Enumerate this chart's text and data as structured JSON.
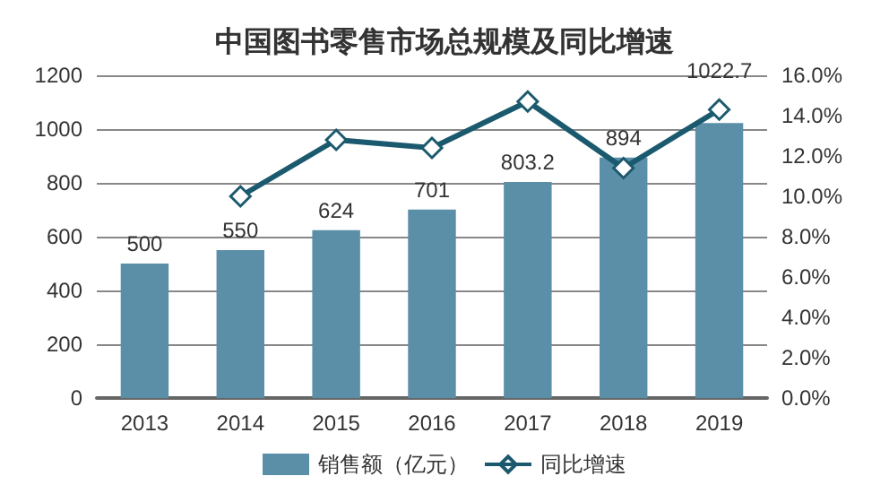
{
  "chart_data": {
    "type": "bar",
    "title": "中国图书零售市场总规模及同比增速",
    "categories": [
      "2013",
      "2014",
      "2015",
      "2016",
      "2017",
      "2018",
      "2019"
    ],
    "series": [
      {
        "name": "销售额（亿元）",
        "color": "#5b8fa8",
        "values": [
          500,
          550,
          624,
          701,
          803.2,
          894,
          1022.7
        ],
        "value_labels": [
          "500",
          "550",
          "624",
          "701",
          "803.2",
          "894",
          "1022.7"
        ]
      },
      {
        "name": "同比增速",
        "type": "line",
        "axis": "y2",
        "color": "#1b5a6e",
        "marker": "diamond",
        "values": [
          null,
          10.0,
          12.8,
          12.4,
          14.7,
          11.4,
          14.3
        ]
      }
    ],
    "ylim": [
      0,
      1200
    ],
    "yticks": [
      0,
      200,
      400,
      600,
      800,
      1000,
      1200
    ],
    "y2lim": [
      0,
      16
    ],
    "y2ticks": [
      {
        "value": 0,
        "label": "0.0%"
      },
      {
        "value": 2,
        "label": "2.0%"
      },
      {
        "value": 4,
        "label": "4.0%"
      },
      {
        "value": 6,
        "label": "6.0%"
      },
      {
        "value": 8,
        "label": "8.0%"
      },
      {
        "value": 10,
        "label": "10.0%"
      },
      {
        "value": 12,
        "label": "12.0%"
      },
      {
        "value": 14,
        "label": "14.0%"
      },
      {
        "value": 16,
        "label": "16.0%"
      }
    ],
    "grid": "y",
    "legend": "bottom"
  }
}
